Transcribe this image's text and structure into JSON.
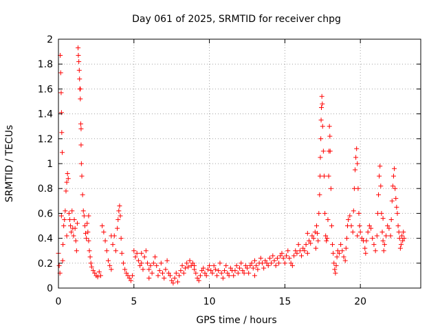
{
  "chart_data": {
    "type": "scatter",
    "title": "Day 061 of 2025, SRMTID for receiver chpg",
    "xlabel": "GPS time / hours",
    "ylabel": "SRMTID / TECUs",
    "xlim": [
      0,
      24
    ],
    "ylim": [
      0,
      2
    ],
    "xticks": [
      0,
      5,
      10,
      15,
      20
    ],
    "xtick_labels": [
      "0",
      "5",
      "10",
      "15",
      "20"
    ],
    "yticks": [
      0,
      0.2,
      0.4,
      0.6,
      0.8,
      1,
      1.2,
      1.4,
      1.6,
      1.8,
      2
    ],
    "ytick_labels": [
      "0",
      "0.2",
      "0.4",
      "0.6",
      "0.8",
      "1",
      "1.2",
      "1.4",
      "1.6",
      "1.8",
      "2"
    ],
    "grid": true,
    "marker": "+",
    "color": "#ff0000",
    "series": [
      {
        "name": "SRMTID",
        "points": [
          [
            0.0,
            0.28
          ],
          [
            0.05,
            0.18
          ],
          [
            0.1,
            0.12
          ],
          [
            0.12,
            1.87
          ],
          [
            0.15,
            1.73
          ],
          [
            0.18,
            1.57
          ],
          [
            0.2,
            1.41
          ],
          [
            0.22,
            1.25
          ],
          [
            0.25,
            1.09
          ],
          [
            0.28,
            0.22
          ],
          [
            0.3,
            0.35
          ],
          [
            0.35,
            0.5
          ],
          [
            0.4,
            0.55
          ],
          [
            0.45,
            0.62
          ],
          [
            0.5,
            0.78
          ],
          [
            0.55,
            0.85
          ],
          [
            0.6,
            0.92
          ],
          [
            0.65,
            0.88
          ],
          [
            0.7,
            0.6
          ],
          [
            0.75,
            0.55
          ],
          [
            0.8,
            0.5
          ],
          [
            0.85,
            0.45
          ],
          [
            0.9,
            0.62
          ],
          [
            0.95,
            0.48
          ],
          [
            1.0,
            0.42
          ],
          [
            1.05,
            0.55
          ],
          [
            1.1,
            0.48
          ],
          [
            1.15,
            0.38
          ],
          [
            1.2,
            0.3
          ],
          [
            1.25,
            0.52
          ],
          [
            1.3,
            1.93
          ],
          [
            1.32,
            1.87
          ],
          [
            1.35,
            1.82
          ],
          [
            1.38,
            1.75
          ],
          [
            1.4,
            1.68
          ],
          [
            1.42,
            1.6
          ],
          [
            1.45,
            1.52
          ],
          [
            1.48,
            1.32
          ],
          [
            1.5,
            1.15
          ],
          [
            1.52,
            1.0
          ],
          [
            1.55,
            0.9
          ],
          [
            1.6,
            0.75
          ],
          [
            1.65,
            0.62
          ],
          [
            1.7,
            0.58
          ],
          [
            1.75,
            0.5
          ],
          [
            1.8,
            0.44
          ],
          [
            1.85,
            0.4
          ],
          [
            1.9,
            0.52
          ],
          [
            1.95,
            0.45
          ],
          [
            2.0,
            0.38
          ],
          [
            2.05,
            0.3
          ],
          [
            2.1,
            0.25
          ],
          [
            2.15,
            0.2
          ],
          [
            2.2,
            0.17
          ],
          [
            2.3,
            0.14
          ],
          [
            2.4,
            0.12
          ],
          [
            2.5,
            0.1
          ],
          [
            2.6,
            0.09
          ],
          [
            2.7,
            0.13
          ],
          [
            2.8,
            0.1
          ],
          [
            2.9,
            0.5
          ],
          [
            3.0,
            0.45
          ],
          [
            3.1,
            0.38
          ],
          [
            3.2,
            0.3
          ],
          [
            3.3,
            0.22
          ],
          [
            3.4,
            0.18
          ],
          [
            3.5,
            0.15
          ],
          [
            3.6,
            0.35
          ],
          [
            3.7,
            0.42
          ],
          [
            3.8,
            0.3
          ],
          [
            3.9,
            0.48
          ],
          [
            3.95,
            0.55
          ],
          [
            4.0,
            0.62
          ],
          [
            4.05,
            0.66
          ],
          [
            4.1,
            0.58
          ],
          [
            4.15,
            0.4
          ],
          [
            4.2,
            0.28
          ],
          [
            4.3,
            0.2
          ],
          [
            4.4,
            0.15
          ],
          [
            4.5,
            0.12
          ],
          [
            4.6,
            0.1
          ],
          [
            4.7,
            0.08
          ],
          [
            4.8,
            0.06
          ],
          [
            4.9,
            0.1
          ],
          [
            5.0,
            0.3
          ],
          [
            5.1,
            0.25
          ],
          [
            5.2,
            0.28
          ],
          [
            5.3,
            0.22
          ],
          [
            5.4,
            0.18
          ],
          [
            5.5,
            0.2
          ],
          [
            5.6,
            0.15
          ],
          [
            5.7,
            0.25
          ],
          [
            5.8,
            0.3
          ],
          [
            5.9,
            0.2
          ],
          [
            6.0,
            0.15
          ],
          [
            6.1,
            0.18
          ],
          [
            6.2,
            0.12
          ],
          [
            6.3,
            0.2
          ],
          [
            6.4,
            0.25
          ],
          [
            6.5,
            0.18
          ],
          [
            6.6,
            0.1
          ],
          [
            6.7,
            0.14
          ],
          [
            6.8,
            0.2
          ],
          [
            6.9,
            0.12
          ],
          [
            7.0,
            0.08
          ],
          [
            7.1,
            0.15
          ],
          [
            7.2,
            0.22
          ],
          [
            7.3,
            0.12
          ],
          [
            7.4,
            0.1
          ],
          [
            7.5,
            0.06
          ],
          [
            7.6,
            0.04
          ],
          [
            7.7,
            0.08
          ],
          [
            7.8,
            0.12
          ],
          [
            7.9,
            0.05
          ],
          [
            8.0,
            0.1
          ],
          [
            8.1,
            0.14
          ],
          [
            8.2,
            0.18
          ],
          [
            8.3,
            0.12
          ],
          [
            8.4,
            0.16
          ],
          [
            8.5,
            0.2
          ],
          [
            8.6,
            0.17
          ],
          [
            8.7,
            0.22
          ],
          [
            8.8,
            0.18
          ],
          [
            8.9,
            0.2
          ],
          [
            9.0,
            0.15
          ],
          [
            9.1,
            0.12
          ],
          [
            9.2,
            0.08
          ],
          [
            9.3,
            0.06
          ],
          [
            9.4,
            0.1
          ],
          [
            9.5,
            0.14
          ],
          [
            9.6,
            0.16
          ],
          [
            9.7,
            0.12
          ],
          [
            9.8,
            0.1
          ],
          [
            9.9,
            0.15
          ],
          [
            10.0,
            0.18
          ],
          [
            10.1,
            0.14
          ],
          [
            10.2,
            0.12
          ],
          [
            10.3,
            0.18
          ],
          [
            10.4,
            0.15
          ],
          [
            10.5,
            0.1
          ],
          [
            10.6,
            0.14
          ],
          [
            10.7,
            0.2
          ],
          [
            10.8,
            0.12
          ],
          [
            10.9,
            0.08
          ],
          [
            11.0,
            0.14
          ],
          [
            11.1,
            0.18
          ],
          [
            11.2,
            0.12
          ],
          [
            11.3,
            0.1
          ],
          [
            11.4,
            0.16
          ],
          [
            11.5,
            0.14
          ],
          [
            11.6,
            0.1
          ],
          [
            11.7,
            0.14
          ],
          [
            11.8,
            0.18
          ],
          [
            11.9,
            0.12
          ],
          [
            12.0,
            0.16
          ],
          [
            12.1,
            0.2
          ],
          [
            12.2,
            0.14
          ],
          [
            12.3,
            0.12
          ],
          [
            12.4,
            0.18
          ],
          [
            12.5,
            0.16
          ],
          [
            12.6,
            0.12
          ],
          [
            12.7,
            0.18
          ],
          [
            12.8,
            0.2
          ],
          [
            12.9,
            0.16
          ],
          [
            13.0,
            0.22
          ],
          [
            13.1,
            0.18
          ],
          [
            13.2,
            0.15
          ],
          [
            13.3,
            0.2
          ],
          [
            13.4,
            0.24
          ],
          [
            13.5,
            0.2
          ],
          [
            13.6,
            0.16
          ],
          [
            13.7,
            0.22
          ],
          [
            13.8,
            0.2
          ],
          [
            13.9,
            0.18
          ],
          [
            14.0,
            0.24
          ],
          [
            14.1,
            0.2
          ],
          [
            14.2,
            0.26
          ],
          [
            14.3,
            0.22
          ],
          [
            14.4,
            0.18
          ],
          [
            14.5,
            0.24
          ],
          [
            14.6,
            0.2
          ],
          [
            14.7,
            0.26
          ],
          [
            14.8,
            0.28
          ],
          [
            14.9,
            0.24
          ],
          [
            15.0,
            0.2
          ],
          [
            15.1,
            0.26
          ],
          [
            15.2,
            0.3
          ],
          [
            15.3,
            0.24
          ],
          [
            15.4,
            0.2
          ],
          [
            15.5,
            0.18
          ],
          [
            15.6,
            0.26
          ],
          [
            15.7,
            0.3
          ],
          [
            15.8,
            0.28
          ],
          [
            15.9,
            0.35
          ],
          [
            16.0,
            0.3
          ],
          [
            16.1,
            0.26
          ],
          [
            16.2,
            0.32
          ],
          [
            16.3,
            0.3
          ],
          [
            16.4,
            0.35
          ],
          [
            16.5,
            0.28
          ],
          [
            16.6,
            0.38
          ],
          [
            16.7,
            0.36
          ],
          [
            16.8,
            0.42
          ],
          [
            16.9,
            0.4
          ],
          [
            17.0,
            0.45
          ],
          [
            17.05,
            0.32
          ],
          [
            17.1,
            0.5
          ],
          [
            17.15,
            0.44
          ],
          [
            17.2,
            0.38
          ],
          [
            17.25,
            0.6
          ],
          [
            17.3,
            0.75
          ],
          [
            17.33,
            0.9
          ],
          [
            17.35,
            1.05
          ],
          [
            17.38,
            1.2
          ],
          [
            17.4,
            1.35
          ],
          [
            17.42,
            1.45
          ],
          [
            17.45,
            1.54
          ],
          [
            17.48,
            1.48
          ],
          [
            17.5,
            1.3
          ],
          [
            17.55,
            1.1
          ],
          [
            17.6,
            0.9
          ],
          [
            17.65,
            0.6
          ],
          [
            17.7,
            0.42
          ],
          [
            17.75,
            0.38
          ],
          [
            17.8,
            0.4
          ],
          [
            17.85,
            0.55
          ],
          [
            17.9,
            0.9
          ],
          [
            17.92,
            1.1
          ],
          [
            17.95,
            1.3
          ],
          [
            17.98,
            1.22
          ],
          [
            18.0,
            1.1
          ],
          [
            18.05,
            0.8
          ],
          [
            18.1,
            0.5
          ],
          [
            18.15,
            0.35
          ],
          [
            18.2,
            0.28
          ],
          [
            18.25,
            0.2
          ],
          [
            18.3,
            0.15
          ],
          [
            18.35,
            0.12
          ],
          [
            18.4,
            0.18
          ],
          [
            18.45,
            0.25
          ],
          [
            18.5,
            0.3
          ],
          [
            18.6,
            0.28
          ],
          [
            18.7,
            0.35
          ],
          [
            18.8,
            0.3
          ],
          [
            18.9,
            0.25
          ],
          [
            19.0,
            0.22
          ],
          [
            19.05,
            0.32
          ],
          [
            19.1,
            0.4
          ],
          [
            19.15,
            0.5
          ],
          [
            19.2,
            0.55
          ],
          [
            19.3,
            0.58
          ],
          [
            19.4,
            0.5
          ],
          [
            19.5,
            0.45
          ],
          [
            19.55,
            0.62
          ],
          [
            19.6,
            0.8
          ],
          [
            19.65,
            0.95
          ],
          [
            19.7,
            1.05
          ],
          [
            19.75,
            1.12
          ],
          [
            19.8,
            1.0
          ],
          [
            19.85,
            0.8
          ],
          [
            19.9,
            0.6
          ],
          [
            19.95,
            0.5
          ],
          [
            20.0,
            0.45
          ],
          [
            20.1,
            0.4
          ],
          [
            20.2,
            0.38
          ],
          [
            20.3,
            0.32
          ],
          [
            20.35,
            0.28
          ],
          [
            20.4,
            0.38
          ],
          [
            20.5,
            0.45
          ],
          [
            20.6,
            0.5
          ],
          [
            20.7,
            0.48
          ],
          [
            20.8,
            0.4
          ],
          [
            20.9,
            0.35
          ],
          [
            21.0,
            0.3
          ],
          [
            21.1,
            0.42
          ],
          [
            21.15,
            0.6
          ],
          [
            21.2,
            0.75
          ],
          [
            21.25,
            0.9
          ],
          [
            21.3,
            0.98
          ],
          [
            21.35,
            0.82
          ],
          [
            21.4,
            0.6
          ],
          [
            21.45,
            0.45
          ],
          [
            21.5,
            0.38
          ],
          [
            21.55,
            0.3
          ],
          [
            21.6,
            0.35
          ],
          [
            21.7,
            0.42
          ],
          [
            21.8,
            0.5
          ],
          [
            21.9,
            0.48
          ],
          [
            22.0,
            0.42
          ],
          [
            22.05,
            0.55
          ],
          [
            22.1,
            0.7
          ],
          [
            22.15,
            0.82
          ],
          [
            22.2,
            0.9
          ],
          [
            22.25,
            0.96
          ],
          [
            22.3,
            0.8
          ],
          [
            22.35,
            0.72
          ],
          [
            22.4,
            0.65
          ],
          [
            22.45,
            0.6
          ],
          [
            22.5,
            0.5
          ],
          [
            22.55,
            0.45
          ],
          [
            22.6,
            0.4
          ],
          [
            22.65,
            0.32
          ],
          [
            22.7,
            0.35
          ],
          [
            22.75,
            0.42
          ],
          [
            22.8,
            0.38
          ],
          [
            22.85,
            0.45
          ],
          [
            22.9,
            0.4
          ],
          [
            1.45,
            1.6
          ],
          [
            1.5,
            1.28
          ],
          [
            0.2,
            0.58
          ],
          [
            0.55,
            0.42
          ],
          [
            2.0,
            0.58
          ],
          [
            3.5,
            0.42
          ],
          [
            5.5,
            0.28
          ],
          [
            6.0,
            0.08
          ],
          [
            9.0,
            0.18
          ],
          [
            13.0,
            0.1
          ],
          [
            16.5,
            0.44
          ],
          [
            19.8,
            0.42
          ],
          [
            21.5,
            0.56
          ]
        ]
      }
    ]
  }
}
